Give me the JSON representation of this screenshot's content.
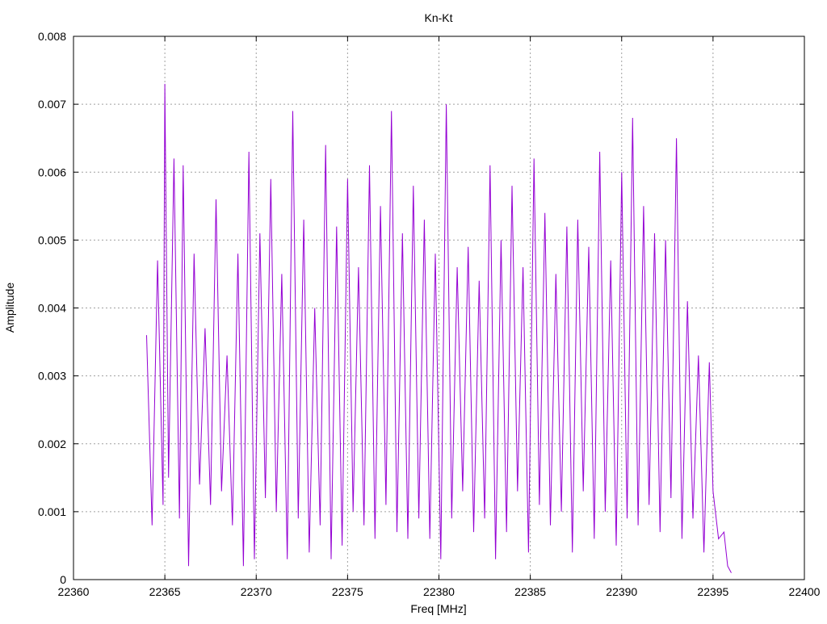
{
  "chart_data": {
    "type": "line",
    "title": "Kn-Kt",
    "xlabel": "Freq [MHz]",
    "ylabel": "Amplitude",
    "xlim": [
      22360,
      22400
    ],
    "ylim": [
      0,
      0.008
    ],
    "xticks": [
      22360,
      22365,
      22370,
      22375,
      22380,
      22385,
      22390,
      22395,
      22400
    ],
    "yticks": [
      0,
      0.001,
      0.002,
      0.003,
      0.004,
      0.005,
      0.006,
      0.007,
      0.008
    ],
    "xtick_labels": [
      "22360",
      "22365",
      "22370",
      "22375",
      "22380",
      "22385",
      "22390",
      "22395",
      "22400"
    ],
    "ytick_labels": [
      "0",
      "0.001",
      "0.002",
      "0.003",
      "0.004",
      "0.005",
      "0.006",
      "0.007",
      "0.008"
    ],
    "grid": true,
    "line_color": "#9400d3",
    "series": [
      {
        "x": [
          22364.0,
          22364.3,
          22364.6,
          22364.9,
          22365.0,
          22365.2,
          22365.5,
          22365.8,
          22366.0,
          22366.3,
          22366.6,
          22366.9,
          22367.2,
          22367.5,
          22367.8,
          22368.1,
          22368.4,
          22368.7,
          22369.0,
          22369.3,
          22369.6,
          22369.9,
          22370.2,
          22370.5,
          22370.8,
          22371.1,
          22371.4,
          22371.7,
          22372.0,
          22372.3,
          22372.6,
          22372.9,
          22373.2,
          22373.5,
          22373.8,
          22374.1,
          22374.4,
          22374.7,
          22375.0,
          22375.3,
          22375.6,
          22375.9,
          22376.2,
          22376.5,
          22376.8,
          22377.1,
          22377.4,
          22377.7,
          22378.0,
          22378.3,
          22378.6,
          22378.9,
          22379.2,
          22379.5,
          22379.8,
          22380.1,
          22380.4,
          22380.7,
          22381.0,
          22381.3,
          22381.6,
          22381.9,
          22382.2,
          22382.5,
          22382.8,
          22383.1,
          22383.4,
          22383.7,
          22384.0,
          22384.3,
          22384.6,
          22384.9,
          22385.2,
          22385.5,
          22385.8,
          22386.1,
          22386.4,
          22386.7,
          22387.0,
          22387.3,
          22387.6,
          22387.9,
          22388.2,
          22388.5,
          22388.8,
          22389.1,
          22389.4,
          22389.7,
          22390.0,
          22390.3,
          22390.6,
          22390.9,
          22391.2,
          22391.5,
          22391.8,
          22392.1,
          22392.4,
          22392.7,
          22393.0,
          22393.3,
          22393.6,
          22393.9,
          22394.2,
          22394.5,
          22394.8,
          22395.0,
          22395.3,
          22395.6,
          22395.8,
          22396.0
        ],
        "y": [
          0.0036,
          0.0008,
          0.0047,
          0.0011,
          0.0073,
          0.0015,
          0.0062,
          0.0009,
          0.0061,
          0.0002,
          0.0048,
          0.0014,
          0.0037,
          0.0011,
          0.0056,
          0.0013,
          0.0033,
          0.0008,
          0.0048,
          0.0002,
          0.0063,
          0.0003,
          0.0051,
          0.0012,
          0.0059,
          0.001,
          0.0045,
          0.0003,
          0.0069,
          0.0009,
          0.0053,
          0.0004,
          0.004,
          0.0008,
          0.0064,
          0.0003,
          0.0052,
          0.0005,
          0.0059,
          0.001,
          0.0046,
          0.0008,
          0.0061,
          0.0006,
          0.0055,
          0.0011,
          0.0069,
          0.0007,
          0.0051,
          0.0006,
          0.0058,
          0.0009,
          0.0053,
          0.0006,
          0.0048,
          0.0003,
          0.007,
          0.0009,
          0.0046,
          0.0013,
          0.0049,
          0.0007,
          0.0044,
          0.0009,
          0.0061,
          0.0003,
          0.005,
          0.0007,
          0.0058,
          0.0013,
          0.0046,
          0.0004,
          0.0062,
          0.0011,
          0.0054,
          0.0008,
          0.0045,
          0.001,
          0.0052,
          0.0004,
          0.0053,
          0.0013,
          0.0049,
          0.0006,
          0.0063,
          0.001,
          0.0047,
          0.0005,
          0.006,
          0.0009,
          0.0068,
          0.0008,
          0.0055,
          0.0011,
          0.0051,
          0.0007,
          0.005,
          0.0012,
          0.0065,
          0.0006,
          0.0041,
          0.0009,
          0.0033,
          0.0004,
          0.0032,
          0.0013,
          0.0006,
          0.0007,
          0.0002,
          0.0001
        ]
      }
    ]
  }
}
